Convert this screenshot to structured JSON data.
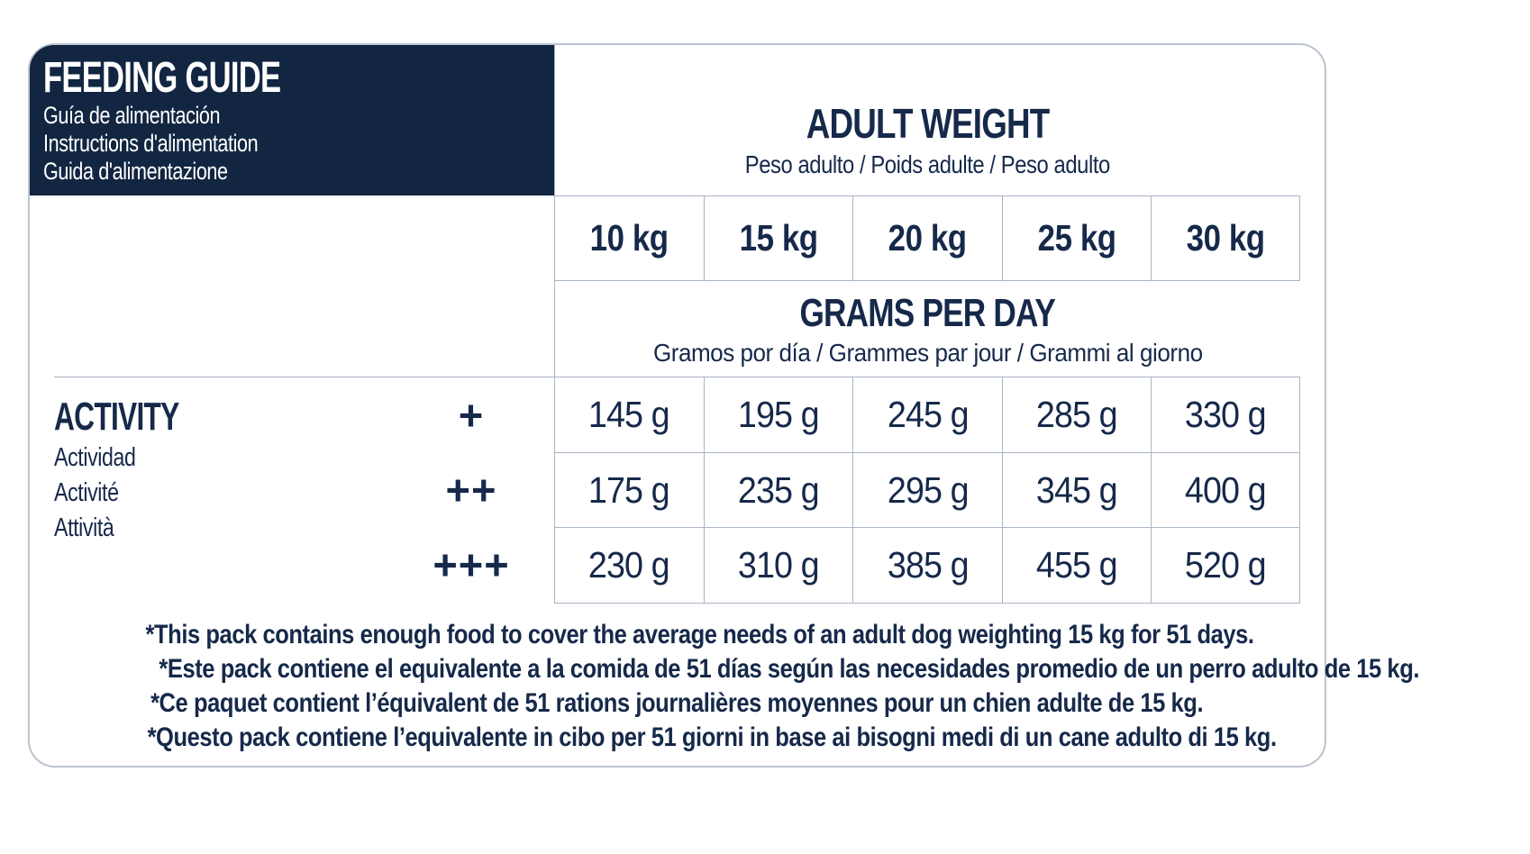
{
  "colors": {
    "navy_box": "#122642",
    "text_navy": "#16294a",
    "table_border": "#a9b4c4",
    "card_border": "#bcc4cf",
    "background": "#ffffff"
  },
  "header": {
    "title": "FEEDING GUIDE",
    "subtitles": [
      "Guía de alimentación",
      "Instructions d'alimentation",
      "Guida d'alimentazione"
    ],
    "adult_weight": {
      "title": "ADULT WEIGHT",
      "subtitle": "Peso adulto / Poids adulte / Peso adulto"
    }
  },
  "table": {
    "weights": [
      "10 kg",
      "15 kg",
      "20 kg",
      "25 kg",
      "30 kg"
    ],
    "grams_per_day": {
      "title": "GRAMS PER DAY",
      "subtitle": "Gramos por día / Grammes par jour / Grammi al giorno"
    },
    "activity": {
      "title": "ACTIVITY",
      "subtitles": [
        "Actividad",
        "Activité",
        "Attività"
      ]
    },
    "rows": [
      {
        "activity_level": "+",
        "values": [
          "145 g",
          "195 g",
          "245 g",
          "285 g",
          "330 g"
        ]
      },
      {
        "activity_level": "++",
        "values": [
          "175 g",
          "235 g",
          "295 g",
          "345 g",
          "400 g"
        ]
      },
      {
        "activity_level": "+++",
        "values": [
          "230 g",
          "310 g",
          "385 g",
          "455 g",
          "520 g"
        ]
      }
    ]
  },
  "footnotes": [
    "*This pack contains enough food to cover the average needs of an adult dog weighting 15 kg for 51 days.",
    "*Este pack contiene el equivalente a la comida de 51 días según las necesidades promedio de un perro adulto de 15 kg.",
    "*Ce paquet contient l’équivalent de 51 rations journalières moyennes pour un chien adulte de 15 kg.",
    "*Questo pack contiene l’equivalente in cibo per 51 giorni in base ai bisogni medi di un cane adulto di 15 kg."
  ]
}
